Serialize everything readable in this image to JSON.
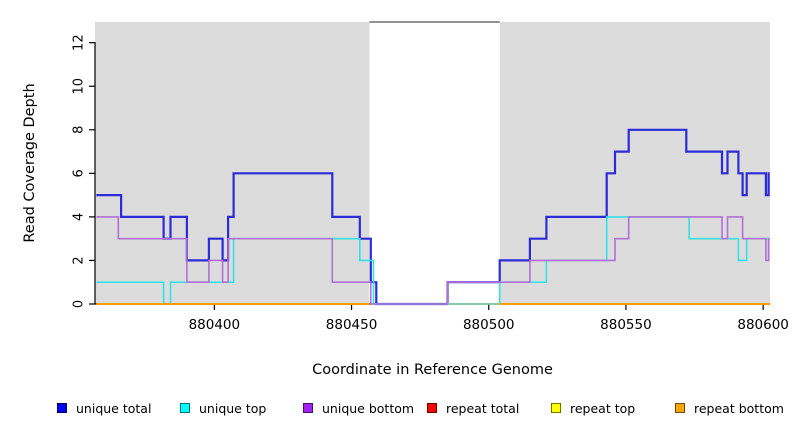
{
  "chart_data": {
    "type": "line",
    "subtype": "step-coverage-plot",
    "title": "",
    "xlabel": "Coordinate in Reference Genome",
    "ylabel": "Read Coverage Depth",
    "xlim": [
      880356.5,
      880602.5
    ],
    "ylim": [
      0,
      12.95
    ],
    "grid": false,
    "legend_position": "bottom",
    "x_ticks": [
      {
        "v": 880400,
        "label": "880400"
      },
      {
        "v": 880450,
        "label": "880450"
      },
      {
        "v": 880500,
        "label": "880500"
      },
      {
        "v": 880550,
        "label": "880550"
      },
      {
        "v": 880600,
        "label": "880600"
      }
    ],
    "y_ticks": [
      {
        "v": 0,
        "label": "0"
      },
      {
        "v": 2,
        "label": "2"
      },
      {
        "v": 4,
        "label": "4"
      },
      {
        "v": 6,
        "label": "6"
      },
      {
        "v": 8,
        "label": "8"
      },
      {
        "v": 10,
        "label": "10"
      },
      {
        "v": 12,
        "label": "12"
      }
    ],
    "background": {
      "shaded_color": "#DCDCDC",
      "shaded_bands": [
        [
          880356.5,
          880456.5
        ],
        [
          880504,
          880602.5
        ]
      ],
      "white_gap": [
        880456.5,
        880504
      ],
      "gap_top_border_color": "#828282"
    },
    "series": [
      {
        "name": "unique total",
        "color": "#2B2BD9",
        "width": 2.2,
        "end": 880602.4,
        "points": [
          [
            880357,
            5
          ],
          [
            880366,
            4
          ],
          [
            880381.5,
            3
          ],
          [
            880384,
            4
          ],
          [
            880390,
            2
          ],
          [
            880398,
            3
          ],
          [
            880403,
            2
          ],
          [
            880405,
            4
          ],
          [
            880407,
            6
          ],
          [
            880443,
            4
          ],
          [
            880453,
            3
          ],
          [
            880457,
            1
          ],
          [
            880459,
            0
          ],
          [
            880485,
            1
          ],
          [
            880504,
            2
          ],
          [
            880515,
            3
          ],
          [
            880521,
            4
          ],
          [
            880543,
            6
          ],
          [
            880546,
            7
          ],
          [
            880551,
            8
          ],
          [
            880572,
            7
          ],
          [
            880585,
            6
          ],
          [
            880587,
            7
          ],
          [
            880591,
            6
          ],
          [
            880592.5,
            5
          ],
          [
            880594,
            6
          ],
          [
            880601,
            5
          ],
          [
            880602,
            6
          ]
        ]
      },
      {
        "name": "unique top",
        "color": "#35E1E9",
        "width": 1.6,
        "end": 880602.4,
        "points": [
          [
            880357,
            1
          ],
          [
            880381.5,
            0
          ],
          [
            880384,
            1
          ],
          [
            880407,
            3
          ],
          [
            880453,
            2
          ],
          [
            880458,
            0
          ],
          [
            880504,
            1
          ],
          [
            880521,
            2
          ],
          [
            880543,
            4
          ],
          [
            880573,
            3
          ],
          [
            880591,
            2
          ],
          [
            880594,
            3
          ]
        ]
      },
      {
        "name": "unique bottom",
        "color": "#B26FD6",
        "width": 1.6,
        "end": 880602.4,
        "points": [
          [
            880357,
            4
          ],
          [
            880365,
            3
          ],
          [
            880390,
            1
          ],
          [
            880398,
            2
          ],
          [
            880403,
            1
          ],
          [
            880405,
            3
          ],
          [
            880443,
            1
          ],
          [
            880457,
            0
          ],
          [
            880485,
            1
          ],
          [
            880515,
            2
          ],
          [
            880546,
            3
          ],
          [
            880551,
            4
          ],
          [
            880585,
            3
          ],
          [
            880587,
            4
          ],
          [
            880592.5,
            3
          ],
          [
            880601,
            2
          ],
          [
            880602,
            3
          ]
        ]
      },
      {
        "name": "repeat total",
        "color": "#E60000",
        "width": 1.6,
        "value": 0,
        "segments": [
          [
            880357,
            880456.5
          ],
          [
            880504,
            880602.4
          ]
        ],
        "note": "constant 0, hidden beneath repeat bottom line"
      },
      {
        "name": "repeat top",
        "color": "#F2F200",
        "width": 1.6,
        "value": 0,
        "segments": [
          [
            880357,
            880456.5
          ],
          [
            880504,
            880602.4
          ]
        ],
        "note": "constant 0, hidden beneath repeat bottom line"
      },
      {
        "name": "repeat bottom",
        "color": "#FF9D00",
        "width": 2.0,
        "value": 0,
        "segments": [
          [
            880357,
            880456.5
          ],
          [
            880504,
            880602.4
          ]
        ]
      }
    ],
    "gap_zero_blend_line": {
      "from": 880485,
      "to": 880504,
      "value": 0,
      "color": "#8CCB96"
    }
  },
  "legend": {
    "items": [
      {
        "label": "unique total",
        "fill": "#0000EE"
      },
      {
        "label": "unique top",
        "fill": "#00FFFF"
      },
      {
        "label": "unique bottom",
        "fill": "#A020F0"
      },
      {
        "label": "repeat total",
        "fill": "#FF0000"
      },
      {
        "label": "repeat top",
        "fill": "#FFFF00"
      },
      {
        "label": "repeat bottom",
        "fill": "#FFA500"
      }
    ]
  }
}
